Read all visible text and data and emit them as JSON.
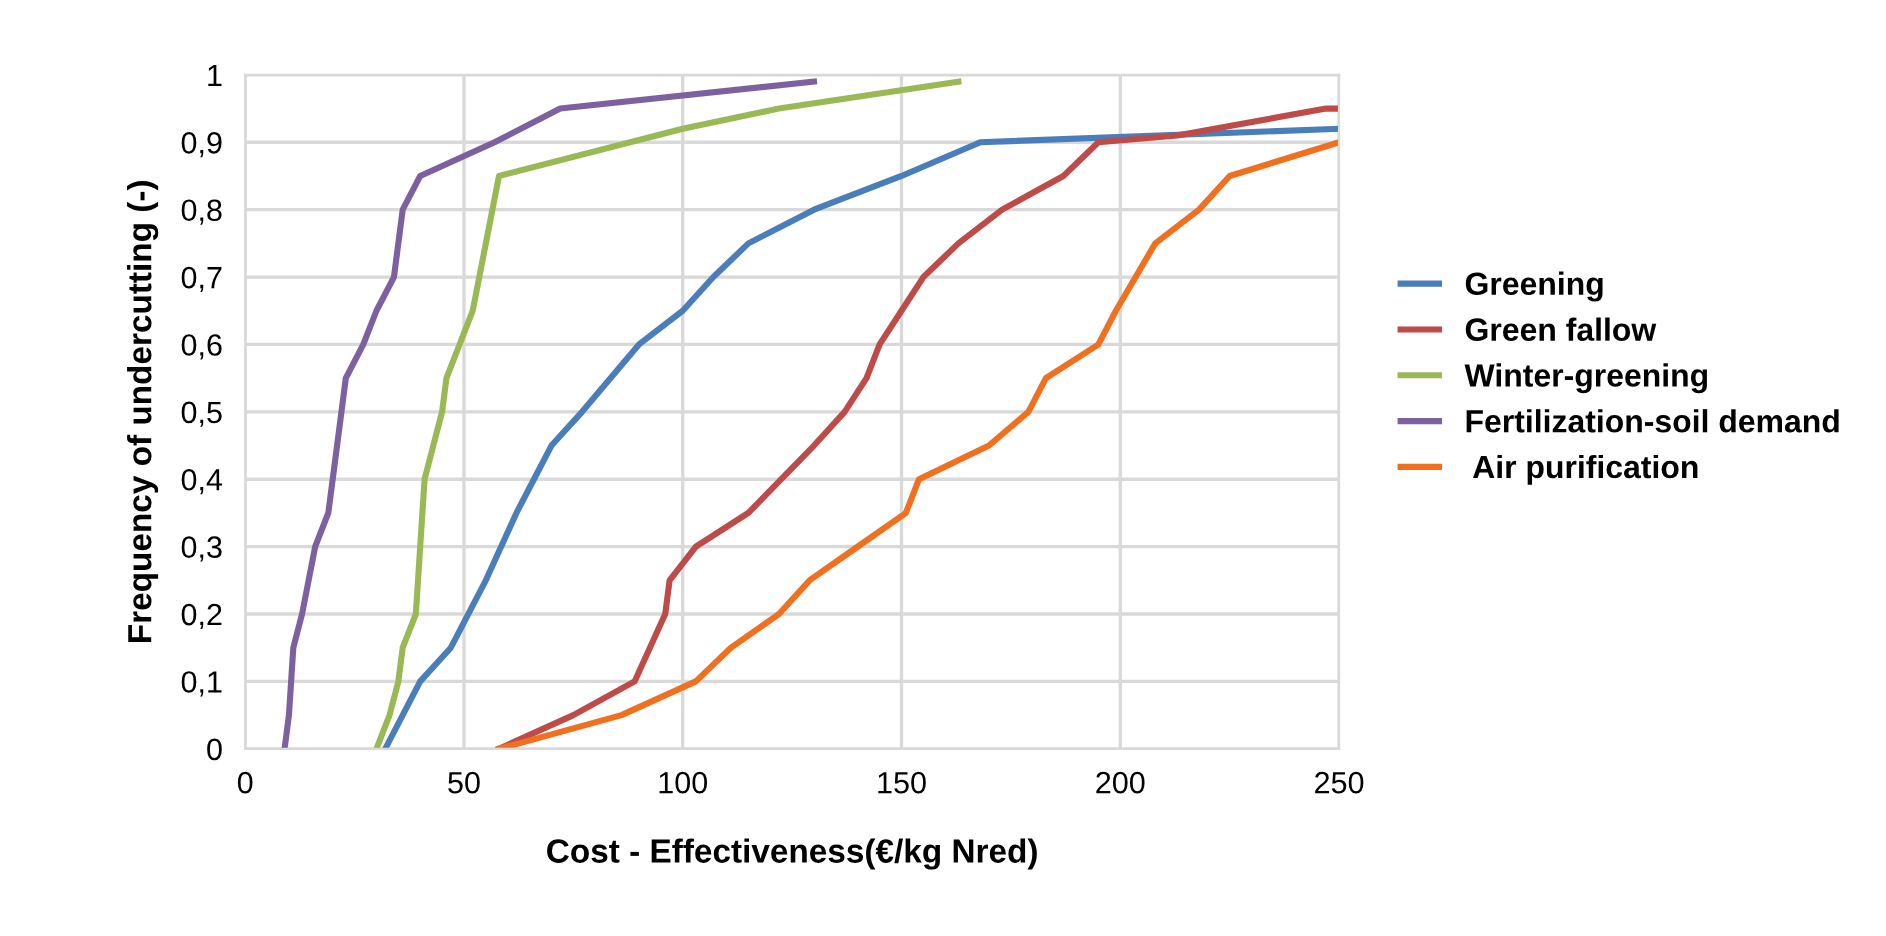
{
  "chart_data": {
    "type": "line",
    "xlabel": "Cost - Effectiveness(€/kg Nred)",
    "ylabel": "Frequency of undercutting (-)",
    "xlim": [
      0,
      250
    ],
    "xticks": [
      0,
      50,
      100,
      150,
      200,
      250
    ],
    "ylim": [
      0,
      1
    ],
    "yticks": [
      {
        "value": 0,
        "label": "0"
      },
      {
        "value": 0.1,
        "label": "0,1"
      },
      {
        "value": 0.2,
        "label": "0,2"
      },
      {
        "value": 0.3,
        "label": "0,3"
      },
      {
        "value": 0.4,
        "label": "0,4"
      },
      {
        "value": 0.5,
        "label": "0,5"
      },
      {
        "value": 0.6,
        "label": "0,6"
      },
      {
        "value": 0.7,
        "label": "0,7"
      },
      {
        "value": 0.8,
        "label": "0,8"
      },
      {
        "value": 0.9,
        "label": "0,9"
      },
      {
        "value": 1,
        "label": "1"
      }
    ],
    "grid": true,
    "legend": "right",
    "marker": "none",
    "line_style": "solid",
    "series": [
      {
        "name": "Greening",
        "color": "#4a7ebb",
        "x": [
          32,
          36,
          40,
          47,
          55,
          62,
          66,
          70,
          77,
          90,
          100,
          107,
          115,
          130,
          150,
          168,
          250
        ],
        "values": [
          0,
          0.05,
          0.1,
          0.15,
          0.25,
          0.35,
          0.4,
          0.45,
          0.5,
          0.6,
          0.65,
          0.7,
          0.75,
          0.8,
          0.85,
          0.9,
          0.92
        ]
      },
      {
        "name": "Green fallow",
        "color": "#be4b48",
        "x": [
          58,
          75,
          89,
          96,
          97,
          103,
          115,
          130,
          137,
          142,
          145,
          150,
          155,
          163,
          173,
          187,
          195,
          213,
          247,
          250
        ],
        "values": [
          0,
          0.05,
          0.1,
          0.2,
          0.25,
          0.3,
          0.35,
          0.45,
          0.5,
          0.55,
          0.6,
          0.65,
          0.7,
          0.75,
          0.8,
          0.85,
          0.9,
          0.91,
          0.95,
          0.95
        ]
      },
      {
        "name": "Winter-greening",
        "color": "#98b954",
        "x": [
          30,
          33,
          35,
          36,
          39,
          40,
          41,
          45,
          46,
          52,
          55,
          58,
          100,
          122,
          163
        ],
        "values": [
          0,
          0.05,
          0.1,
          0.15,
          0.2,
          0.3,
          0.4,
          0.5,
          0.55,
          0.65,
          0.75,
          0.85,
          0.92,
          0.95,
          0.99
        ]
      },
      {
        "name": "Fertilization-soil demand",
        "color": "#7d60a0",
        "x": [
          9,
          10,
          11,
          13,
          16,
          19,
          21,
          23,
          27,
          30,
          34,
          36,
          40,
          57,
          72,
          130
        ],
        "values": [
          0,
          0.05,
          0.15,
          0.2,
          0.3,
          0.35,
          0.45,
          0.55,
          0.6,
          0.65,
          0.7,
          0.8,
          0.85,
          0.9,
          0.95,
          0.99
        ]
      },
      {
        "name": " Air purification",
        "color": "#f07020",
        "x": [
          58,
          86,
          103,
          111,
          122,
          129,
          140,
          151,
          154,
          170,
          179,
          183,
          195,
          199,
          208,
          218,
          225,
          250
        ],
        "values": [
          0,
          0.05,
          0.1,
          0.15,
          0.2,
          0.25,
          0.3,
          0.35,
          0.4,
          0.45,
          0.5,
          0.55,
          0.6,
          0.65,
          0.75,
          0.8,
          0.85,
          0.9
        ]
      }
    ]
  }
}
